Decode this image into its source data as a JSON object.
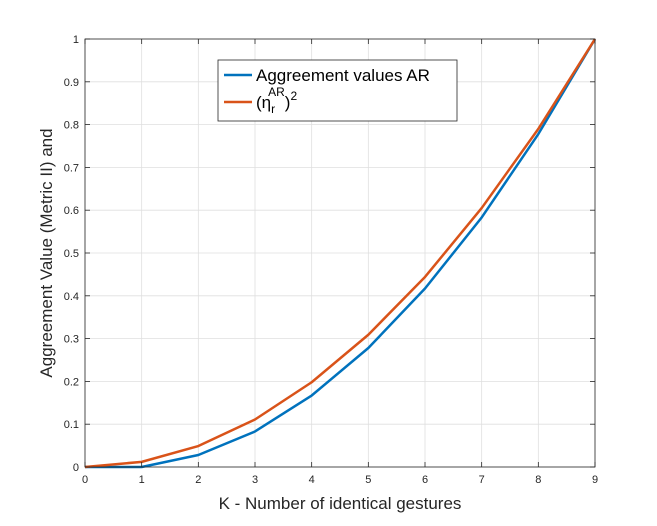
{
  "chart_data": {
    "type": "line",
    "x": [
      0,
      1,
      2,
      3,
      4,
      5,
      6,
      7,
      8,
      9
    ],
    "series": [
      {
        "name": "Aggreement values AR",
        "color": "#0072BD",
        "values": [
          0.0,
          0.0,
          0.028,
          0.083,
          0.167,
          0.278,
          0.417,
          0.583,
          0.778,
          1.0
        ]
      },
      {
        "name_parts": {
          "main": "(η",
          "sub": "r",
          "sup": "AR",
          "tail": ")",
          "exp": "2"
        },
        "color": "#D95319",
        "values": [
          0.0,
          0.012,
          0.049,
          0.111,
          0.198,
          0.309,
          0.444,
          0.605,
          0.79,
          1.0
        ]
      }
    ],
    "xlabel": "K - Number of identical gestures",
    "ylabel": "Aggreement Value (Metric II) and",
    "xlim": [
      0,
      9
    ],
    "ylim": [
      0,
      1
    ],
    "xticks": [
      "0",
      "1",
      "2",
      "3",
      "4",
      "5",
      "6",
      "7",
      "8",
      "9"
    ],
    "yticks": [
      "0",
      "0.1",
      "0.2",
      "0.3",
      "0.4",
      "0.5",
      "0.6",
      "0.7",
      "0.8",
      "0.9",
      "1"
    ],
    "grid": true,
    "legend_position": "top-center"
  }
}
